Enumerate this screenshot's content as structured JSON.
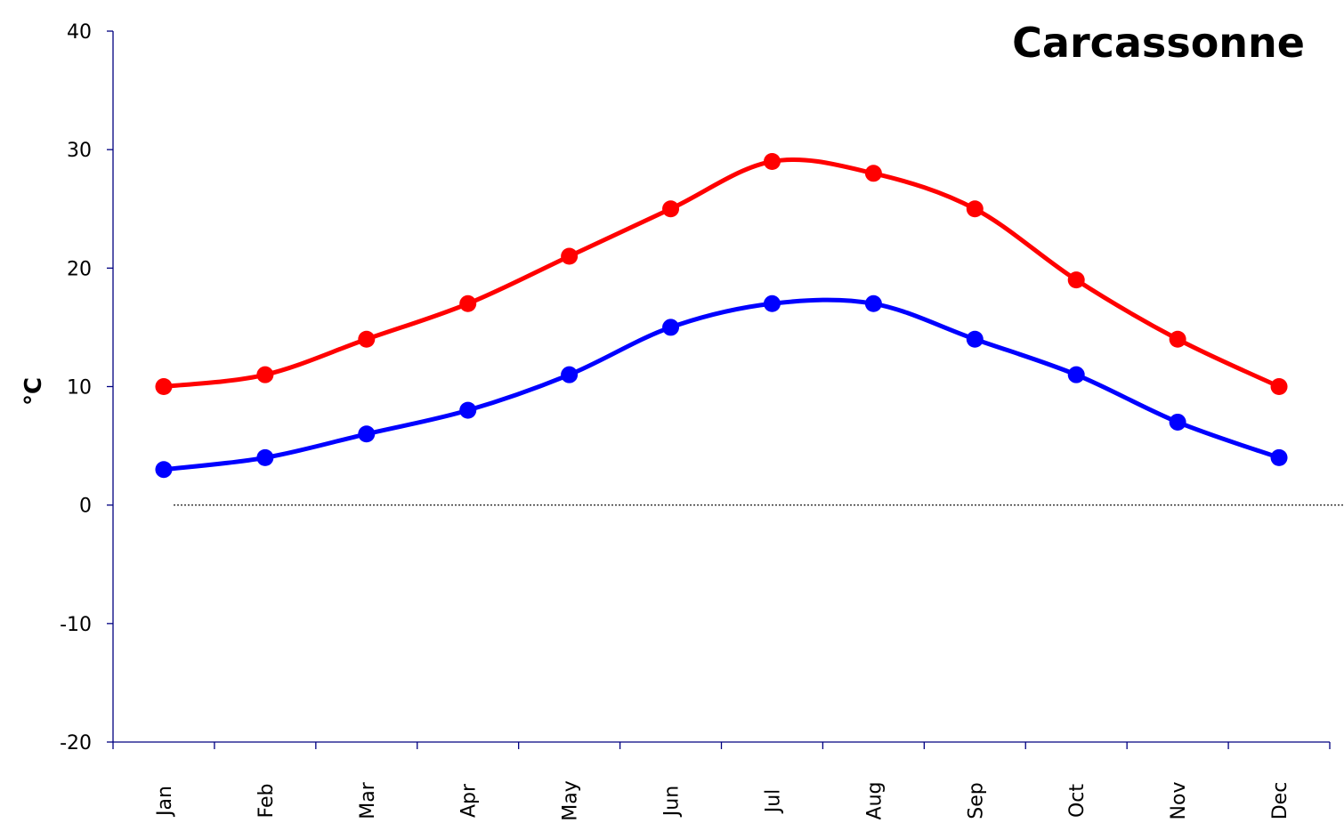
{
  "chart_data": {
    "type": "line",
    "title": "Carcassonne",
    "xlabel": "",
    "ylabel": "°C",
    "categories": [
      "Jan",
      "Feb",
      "Mar",
      "Apr",
      "May",
      "Jun",
      "Jul",
      "Aug",
      "Sep",
      "Oct",
      "Nov",
      "Dec"
    ],
    "ylim": [
      -20,
      40
    ],
    "yticks": [
      -20,
      -10,
      0,
      10,
      20,
      30,
      40
    ],
    "grid": false,
    "legend": "none",
    "zero_line": "dotted",
    "series": [
      {
        "color": "#ff0000",
        "values": [
          10,
          11,
          14,
          17,
          21,
          25,
          29,
          28,
          25,
          19,
          14,
          10
        ]
      },
      {
        "color": "#0000ff",
        "values": [
          3,
          4,
          6,
          8,
          11,
          15,
          17,
          17,
          14,
          11,
          7,
          4
        ]
      }
    ]
  }
}
